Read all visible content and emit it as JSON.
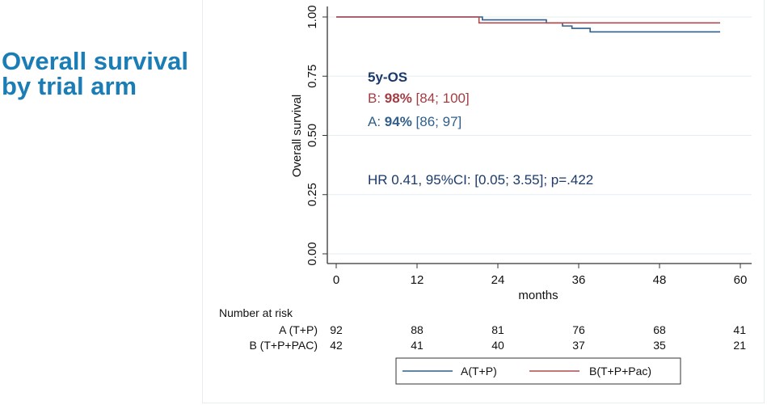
{
  "slide_title": [
    "Overall survival",
    "by trial arm"
  ],
  "chart_data": {
    "type": "line",
    "subtype": "kaplan-meier step",
    "xlabel": "months",
    "ylabel": "Overall survival",
    "xlim": [
      0,
      60
    ],
    "ylim": [
      0,
      1
    ],
    "xticks": [
      "0",
      "12",
      "24",
      "36",
      "48",
      "60"
    ],
    "yticks": [
      "0.00",
      "0.25",
      "0.50",
      "0.75",
      "1.00"
    ],
    "grid": "horizontal",
    "series": [
      {
        "name": "A(T+P)",
        "color": "#2f5f8a",
        "x": [
          0,
          21.7,
          31.2,
          33.6,
          35.0,
          37.7,
          57.0
        ],
        "y": [
          1.0,
          0.988,
          0.975,
          0.962,
          0.952,
          0.937,
          0.937
        ]
      },
      {
        "name": "B(T+P+Pac)",
        "color": "#b04a4f",
        "x": [
          0,
          21.2,
          57.0
        ],
        "y": [
          1.0,
          0.975,
          0.975
        ]
      }
    ],
    "annotations": {
      "heading": "5y-OS",
      "b_prefix": "B: ",
      "b_value": "98%",
      "b_ci": " [84; 100]",
      "a_prefix": "A: ",
      "a_value": "94%",
      "a_ci": " [86; 97]",
      "hr": "HR 0.41, 95%CI: [0.05; 3.55]; p=.422"
    },
    "risk_table": {
      "heading": "Number at risk",
      "rows": [
        {
          "label": "A (T+P)",
          "values": [
            "92",
            "88",
            "81",
            "76",
            "68",
            "41"
          ]
        },
        {
          "label": "B (T+P+PAC)",
          "values": [
            "42",
            "41",
            "40",
            "37",
            "35",
            "21"
          ]
        }
      ]
    },
    "legend": {
      "placement": "bottom",
      "entries": [
        "A(T+P)",
        "B(T+P+Pac)"
      ]
    },
    "colors": {
      "heading": "#1b3a6b",
      "a": "#2f5f8a",
      "b": "#a33d44",
      "hr": "#1b3a6b"
    }
  }
}
